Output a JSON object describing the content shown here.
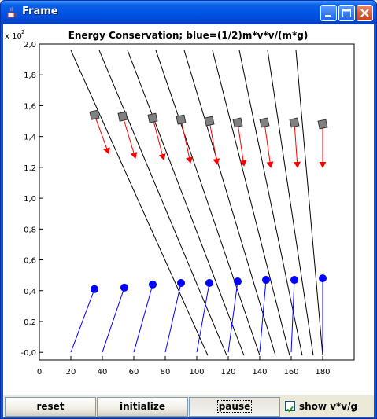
{
  "window": {
    "title": "Frame",
    "icon": "java-cup-icon"
  },
  "title_buttons": [
    "minimize-icon",
    "maximize-icon",
    "close-icon"
  ],
  "chart_data": {
    "type": "scatter",
    "title": "Energy Conservation; blue=(1/2)m*v*v/(m*g)",
    "y_multiplier": "x 10",
    "y_multiplier_exp": "2",
    "xlim": [
      0,
      200
    ],
    "ylim": [
      -0.05,
      2.0
    ],
    "x_ticks": [
      "0",
      "20",
      "40",
      "60",
      "80",
      "100",
      "120",
      "140",
      "160",
      "180"
    ],
    "x_tick_values": [
      0,
      20,
      40,
      60,
      80,
      100,
      120,
      140,
      160,
      180
    ],
    "y_ticks": [
      "-0,0",
      "0,2",
      "0,4",
      "0,6",
      "0,8",
      "1,0",
      "1,2",
      "1,4",
      "1,6",
      "1,8",
      "2,0"
    ],
    "y_tick_values": [
      0,
      0.2,
      0.4,
      0.6,
      0.8,
      1.0,
      1.2,
      1.4,
      1.6,
      1.8,
      2.0
    ],
    "ramps": [
      {
        "x1": 20,
        "y1": 1.96,
        "x2": 107,
        "y2": -0.02
      },
      {
        "x1": 38,
        "y1": 1.96,
        "x2": 119,
        "y2": -0.02
      },
      {
        "x1": 56,
        "y1": 1.96,
        "x2": 130,
        "y2": -0.02
      },
      {
        "x1": 74,
        "y1": 1.96,
        "x2": 140,
        "y2": -0.02
      },
      {
        "x1": 92,
        "y1": 1.96,
        "x2": 150,
        "y2": -0.02
      },
      {
        "x1": 110,
        "y1": 1.96,
        "x2": 159,
        "y2": -0.02
      },
      {
        "x1": 127,
        "y1": 1.96,
        "x2": 167,
        "y2": -0.02
      },
      {
        "x1": 145,
        "y1": 1.96,
        "x2": 174,
        "y2": -0.02
      },
      {
        "x1": 163,
        "y1": 1.96,
        "x2": 180,
        "y2": -0.02
      }
    ],
    "series": [
      {
        "marker": "square",
        "color": "#808080",
        "points": [
          {
            "x": 35,
            "y": 1.54
          },
          {
            "x": 53,
            "y": 1.53
          },
          {
            "x": 72,
            "y": 1.52
          },
          {
            "x": 90,
            "y": 1.51
          },
          {
            "x": 108,
            "y": 1.5
          },
          {
            "x": 126,
            "y": 1.49
          },
          {
            "x": 143,
            "y": 1.49
          },
          {
            "x": 162,
            "y": 1.49
          },
          {
            "x": 180,
            "y": 1.48
          }
        ]
      },
      {
        "marker": "arrow",
        "color": "#ff0000",
        "vectors": [
          {
            "x1": 35,
            "y1": 1.54,
            "x2": 44,
            "y2": 1.29
          },
          {
            "x1": 53,
            "y1": 1.53,
            "x2": 61,
            "y2": 1.26
          },
          {
            "x1": 72,
            "y1": 1.52,
            "x2": 79,
            "y2": 1.25
          },
          {
            "x1": 90,
            "y1": 1.51,
            "x2": 96,
            "y2": 1.23
          },
          {
            "x1": 108,
            "y1": 1.5,
            "x2": 113,
            "y2": 1.22
          },
          {
            "x1": 126,
            "y1": 1.49,
            "x2": 130,
            "y2": 1.21
          },
          {
            "x1": 143,
            "y1": 1.49,
            "x2": 147,
            "y2": 1.2
          },
          {
            "x1": 162,
            "y1": 1.49,
            "x2": 164,
            "y2": 1.2
          },
          {
            "x1": 180,
            "y1": 1.48,
            "x2": 180,
            "y2": 1.2
          }
        ]
      },
      {
        "marker": "circle",
        "color": "#0000ff",
        "points": [
          {
            "x": 35,
            "y": 0.41,
            "x0": 20
          },
          {
            "x": 54,
            "y": 0.42,
            "x0": 40
          },
          {
            "x": 72,
            "y": 0.44,
            "x0": 60
          },
          {
            "x": 90,
            "y": 0.45,
            "x0": 80
          },
          {
            "x": 108,
            "y": 0.45,
            "x0": 100
          },
          {
            "x": 126,
            "y": 0.46,
            "x0": 120
          },
          {
            "x": 144,
            "y": 0.47,
            "x0": 140
          },
          {
            "x": 162,
            "y": 0.47,
            "x0": 160
          },
          {
            "x": 180,
            "y": 0.48,
            "x0": 180
          }
        ]
      }
    ]
  },
  "controls": {
    "reset_label": "reset",
    "initialize_label": "initialize",
    "pause_label": "pause",
    "show_label": "show v*v/g",
    "show_checked": true
  }
}
